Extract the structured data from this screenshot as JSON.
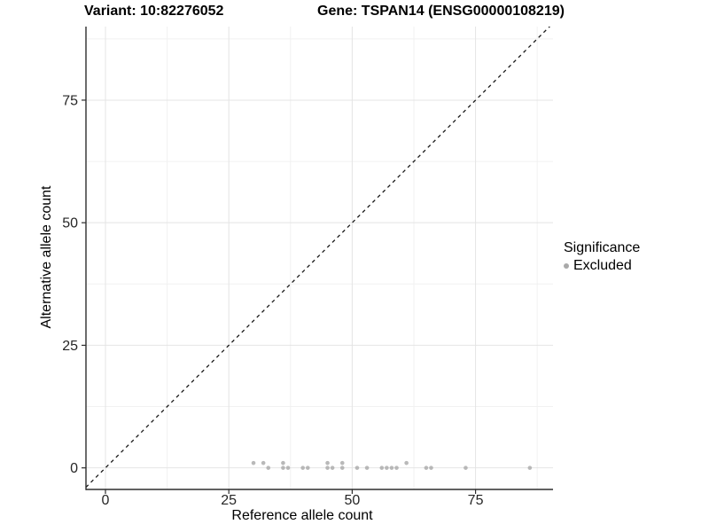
{
  "titles": {
    "variant": "Variant: 10:82276052",
    "gene": "Gene: TSPAN14 (ENSG00000108219)"
  },
  "legend": {
    "title": "Significance",
    "items": [
      {
        "label": "Excluded",
        "color": "#a9a9a9"
      }
    ]
  },
  "colors": {
    "background": "#ffffff",
    "grid_major": "#e4e4e4",
    "grid_minor": "#f1f1f1",
    "axis_line": "#2e2e2e",
    "tick_label": "#262626",
    "identity_line": "#1a1a1a",
    "point": "#adadad"
  },
  "chart_data": {
    "type": "scatter",
    "xlabel": "Reference allele count",
    "ylabel": "Alternative allele count",
    "x_ticks": [
      0,
      25,
      50,
      75
    ],
    "y_ticks": [
      0,
      25,
      50,
      75
    ],
    "x_minor_ticks": [
      12.5,
      37.5,
      62.5,
      87.5
    ],
    "y_minor_ticks": [
      12.5,
      37.5,
      62.5,
      87.5
    ],
    "xlim": [
      -3.95,
      90.7
    ],
    "ylim": [
      -4.4,
      90.0
    ],
    "grid": true,
    "legend_position": "right",
    "identity_line": "y = x dashed",
    "series": [
      {
        "name": "Excluded",
        "color": "#adadad",
        "points": [
          [
            30,
            1
          ],
          [
            32,
            1
          ],
          [
            36,
            1
          ],
          [
            45,
            1
          ],
          [
            48,
            1
          ],
          [
            61,
            1
          ],
          [
            33,
            0
          ],
          [
            36,
            0
          ],
          [
            37,
            0
          ],
          [
            40,
            0
          ],
          [
            41,
            0
          ],
          [
            45,
            0
          ],
          [
            46,
            0
          ],
          [
            48,
            0
          ],
          [
            51,
            0
          ],
          [
            53,
            0
          ],
          [
            56,
            0
          ],
          [
            57,
            0
          ],
          [
            58,
            0
          ],
          [
            59,
            0
          ],
          [
            65,
            0
          ],
          [
            66,
            0
          ],
          [
            73,
            0
          ],
          [
            86,
            0
          ]
        ]
      }
    ]
  }
}
